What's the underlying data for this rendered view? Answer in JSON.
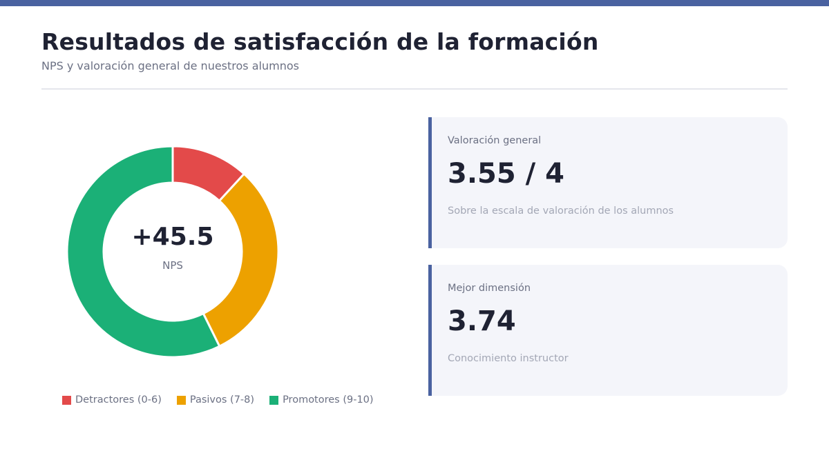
{
  "header": {
    "title": "Resultados de satisfacción de la formación",
    "subtitle": "NPS y valoración general de nuestros alumnos"
  },
  "colors": {
    "accent": "#4a62a0",
    "detractors": "#e34a4a",
    "passives": "#eda100",
    "promoters": "#1bb077"
  },
  "chart_data": {
    "type": "pie",
    "donut": true,
    "categories": [
      "Detractores (0-6)",
      "Pasivos (7-8)",
      "Promotores (9-10)"
    ],
    "values": [
      11.8,
      30.9,
      57.3
    ],
    "colors": [
      "#e34a4a",
      "#eda100",
      "#1bb077"
    ],
    "center_value": "+45.5",
    "center_label": "NPS",
    "legend_position": "bottom"
  },
  "cards": [
    {
      "label": "Valoración general",
      "value": "3.55 / 4",
      "note": "Sobre la escala de valoración de los alumnos"
    },
    {
      "label": "Mejor dimensión",
      "value": "3.74",
      "note": "Conocimiento instructor"
    }
  ]
}
